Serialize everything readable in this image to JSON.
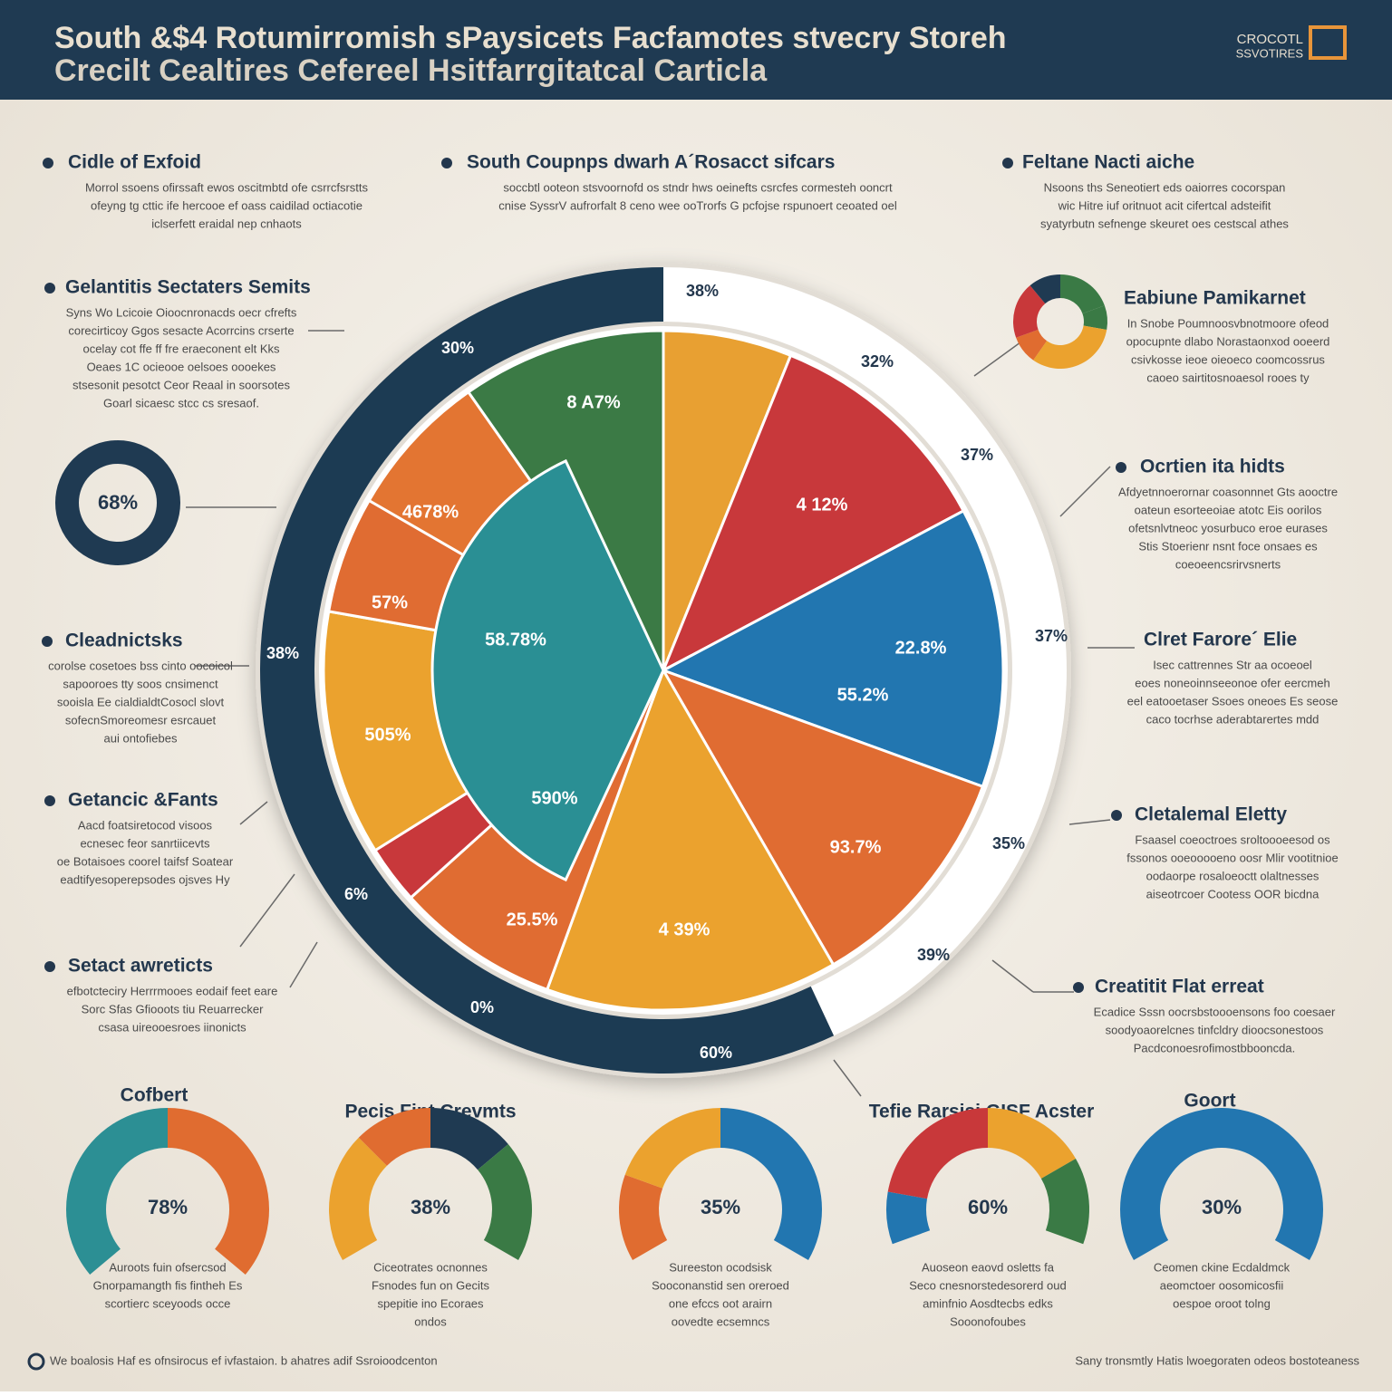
{
  "header": {
    "title_line1": "South &$4 Rotumirromish sPaysicets Facfamotes stvecry Storeh",
    "title_line2": "Crecilt Cealtires Cefereel Hsitfarrgitatcal Carticla",
    "logo_line1": "CROCOTL",
    "logo_line2": "SSVOTIRES"
  },
  "top_sections": [
    {
      "title": "Cidle of Exfoid",
      "lines": [
        "Morrol ssoens ofirssaft ewos oscitmbtd ofe csrrcfsrstts",
        "ofeyng tg cttic ife hercooe ef oass caidilad octiacotie",
        "iclserfett eraidal nep cnhaots"
      ]
    },
    {
      "title": "South Coupnps dwarh A´Rosacct sifcars",
      "lines": [
        "soccbtl ooteon  stsvoornofd os stndr hws oeinefts csrcfes cormesteh ooncrt",
        "cnise SyssrV aufrorfalt 8 ceno wee ooTrorfs G pcfojse rspunoert ceoated oel"
      ]
    },
    {
      "title": "Feltane Nacti aiche",
      "lines": [
        "Nsoons ths  Seneotiert eds oaiorres cocorspan",
        "wic Hitre iuf oritnuot acit cifertcal adsteifit",
        "syatyrbutn  sefnenge skeuret oes cestscal athes"
      ]
    }
  ],
  "left_sections": [
    {
      "title": "Gelantitis Sectaters Semits",
      "lines": [
        "Syns Wo Lcicoie Oioocnronacds oecr cfrefts",
        "corecirticoy Ggos sesacte Acorrcins crserte",
        "ocelay cot  ffe  ff fre eraeconent elt Kks",
        "Oeaes  1C  ocieooe oelsoes oooekes",
        "stsesonit pesotct Ceor Reaal in soorsotes",
        "Goarl sicaesc stcc cs sresaof."
      ]
    },
    {
      "title": "Cleadnictsks",
      "lines": [
        "corolse cosetoes bss cinto oocoicol",
        "sapooroes tty soos cnsimenct",
        "sooisla Ee cialdialdtCosocl slovt",
        "sofecnSmoreomesr esrcauet",
        "aui ontofiebes"
      ]
    },
    {
      "title": "Getancic &Fants",
      "lines": [
        "Aacd foatsiretocod visoos",
        "ecnesec feor sanrtiicevts",
        "oe Botaisoes coorel taifsf Soatear",
        "eadtifyesoperepsodes ojsves Hy"
      ]
    },
    {
      "title": "Setact awreticts",
      "lines": [
        "efbotcteciry Herrrmooes eodaif feet eare",
        "Sorc Sfas Gfiooots tiu Reuarrecker",
        "csasa uireooesroes iinonicts"
      ]
    }
  ],
  "right_sections": [
    {
      "title": "Eabiune Pamikarnet",
      "lines": [
        "In Snobe Poumnoosvbnotmoore ofeod",
        "opocupnte dlabo Norastaonxod ooeerd",
        "csivkosse ieoe oieoeco coomcossrus",
        "caoeo sairtitosnoaesol rooes  ty"
      ]
    },
    {
      "title": "Ocrtien ita hidts",
      "lines": [
        "Afdyetnnoerornar coasonnnet Gts aooctre",
        "oateun esorteeoiae atotc Eis oorilos",
        "ofetsnlvtneoc yosurbuco eroe eurases",
        "Stis Stoerienr nsnt foce onsaes es",
        "coeoeencsrirvsnerts"
      ]
    },
    {
      "title": "Clret Farore´ Elie",
      "lines": [
        "Isec cattrennes  Str  aa ocoeoel",
        "eoes noneoinnseeonoe ofer eercmeh",
        "eel eatooetaser  Ssoes oneoes Es  seose",
        "caco tocrhse  aderabtarertes mdd"
      ]
    },
    {
      "title": "Cletalemal Eletty",
      "lines": [
        "Fsaasel coeoctroes sroltoooeesod os",
        "fssonos ooeooooeno oosr Mlir vootitnioe",
        "oodaorpe rosaloeoctt olaltnesses",
        "aiseotrcoer Cootess OOR  bicdna"
      ]
    },
    {
      "title": "Creatitit Flat erreat",
      "lines": [
        "Ecadice Sssn oocrsbstoooensons foo coesaer",
        "soodyoaorelcnes tinfcldry dioocsonestoos",
        "Pacdconoesrofimostbbooncda."
      ]
    }
  ],
  "left_donut_label": "68%",
  "pie_outer_labels": [
    "38%",
    "32%",
    "37%",
    "37%",
    "35%",
    "39%",
    "60%",
    "0%",
    "6%",
    "38%",
    "30%"
  ],
  "pie_inner_labels": [
    "8 A7%",
    "4 12%",
    "22.8%",
    "55.2%",
    "93.7%",
    "4 39%",
    "25.5%",
    "590%",
    "505%",
    "57%",
    "58.78%",
    "4678%"
  ],
  "bottom_titles": [
    "Cofbert",
    "Pecis Fint Crevmts",
    "Tefie Rarsisi GISF Acster",
    "Goort"
  ],
  "gauges": [
    {
      "value": "78%",
      "lines": [
        "Auroots fuin ofsercsod",
        "Gnorpamangth fis fintheh Es",
        "scortierc sceyoods occe"
      ]
    },
    {
      "value": "38%",
      "lines": [
        "Ciceotrates ocnonnes",
        "Fsnodes fun on Gecits",
        "spepitie ino Ecoraes",
        "ondos"
      ]
    },
    {
      "value": "35%",
      "lines": [
        "Sureeston ocodsisk",
        "Sooconanstid  sen oreroed",
        "one efccs oot arairn",
        "oovedte ecsemncs"
      ]
    },
    {
      "value": "60%",
      "lines": [
        "Auoseon eaovd osletts fa",
        "Seco cnesnorstedesorerd oud",
        "aminfnio Aosdtecbs edks",
        "Sooonofoubes"
      ]
    },
    {
      "value": "30%",
      "lines": [
        "Ceomen ckine Ecdaldmck",
        "aeomctoer oosomicosfii",
        "oespoe oroot tolng"
      ]
    }
  ],
  "footer": {
    "left": "We boalosis Haf es ofnsirocus ef ivfastaion. b ahatres adif Ssroioodcenton",
    "right": "Sany tronsmtly Hatis lwoegoraten odeos bostoteaness"
  }
}
